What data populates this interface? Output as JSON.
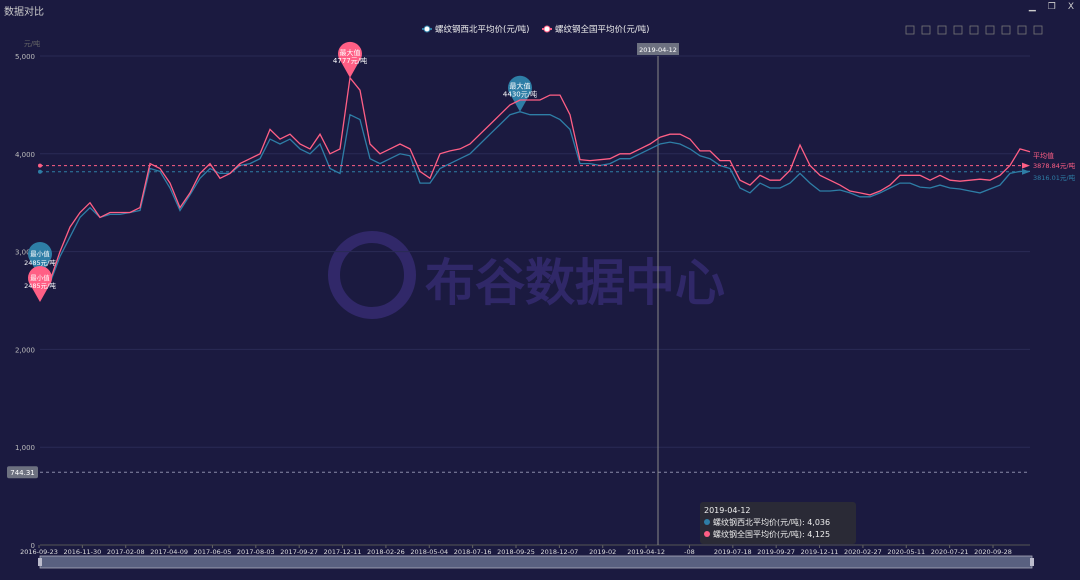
{
  "window": {
    "title": "数据对比",
    "buttons": [
      "minimize",
      "restore",
      "close"
    ],
    "close_label": "X"
  },
  "toolbar_icons": [
    "restore-icon",
    "zoom-select-icon",
    "zoom-reset-icon",
    "bar-chart-icon",
    "stack-icon",
    "scatter-icon",
    "brush-icon",
    "clear-icon",
    "download-icon"
  ],
  "chart_data": {
    "type": "line",
    "legend": {
      "position": "top-center",
      "items": [
        "螺纹钢西北平均价(元/吨)",
        "螺纹钢全国平均价(元/吨)"
      ]
    },
    "ylabel": "元/吨",
    "ylim": [
      0,
      5000
    ],
    "yticks": [
      "0",
      "1,000",
      "2,000",
      "3,000",
      "4,000",
      "5,000"
    ],
    "xticks": [
      "2016-09-23",
      "2016-11-30",
      "2017-02-08",
      "2017-04-09",
      "2017-06-05",
      "2017-08-03",
      "2017-09-27",
      "2017-12-11",
      "2018-02-26",
      "2018-05-04",
      "2018-07-16",
      "2018-09-25",
      "2018-12-07",
      "2019-02",
      "2019-04-12",
      "-08",
      "2019-07-18",
      "2019-09-27",
      "2019-12-11",
      "2020-02-27",
      "2020-05-11",
      "2020-07-21",
      "2020-09-28"
    ],
    "series": [
      {
        "name": "螺纹钢西北平均价(元/吨)",
        "color": "#2e7ea6",
        "values": [
          2560,
          2680,
          2950,
          3150,
          3350,
          3450,
          3350,
          3380,
          3380,
          3400,
          3420,
          3850,
          3820,
          3650,
          3420,
          3580,
          3750,
          3850,
          3800,
          3800,
          3880,
          3900,
          3950,
          4150,
          4100,
          4150,
          4050,
          4000,
          4100,
          3850,
          3800,
          4400,
          4350,
          3950,
          3900,
          3950,
          4000,
          3980,
          3700,
          3700,
          3850,
          3900,
          3950,
          4000,
          4100,
          4200,
          4300,
          4400,
          4430,
          4400,
          4400,
          4400,
          4350,
          4250,
          3900,
          3900,
          3880,
          3900,
          3950,
          3950,
          4000,
          4050,
          4100,
          4120,
          4100,
          4050,
          3980,
          3950,
          3880,
          3850,
          3650,
          3600,
          3700,
          3650,
          3650,
          3700,
          3800,
          3700,
          3620,
          3620,
          3630,
          3600,
          3560,
          3560,
          3600,
          3650,
          3700,
          3700,
          3660,
          3650,
          3680,
          3650,
          3640,
          3620,
          3600,
          3640,
          3680,
          3800,
          3820,
          3820
        ],
        "max": {
          "label": "最大值",
          "value": "4430元/吨"
        },
        "min": {
          "label": "最小值",
          "value": "2485元/吨"
        },
        "average": {
          "value": "3816.01元/吨"
        }
      },
      {
        "name": "螺纹钢全国平均价(元/吨)",
        "color": "#ff5f85",
        "values": [
          2560,
          2700,
          3000,
          3250,
          3400,
          3500,
          3350,
          3400,
          3400,
          3400,
          3450,
          3900,
          3850,
          3700,
          3450,
          3600,
          3800,
          3900,
          3750,
          3800,
          3900,
          3950,
          4000,
          4250,
          4150,
          4200,
          4100,
          4050,
          4200,
          4000,
          4050,
          4777,
          4650,
          4100,
          4000,
          4050,
          4100,
          4050,
          3820,
          3750,
          4000,
          4030,
          4050,
          4100,
          4200,
          4300,
          4400,
          4500,
          4550,
          4550,
          4550,
          4600,
          4600,
          4400,
          3940,
          3930,
          3940,
          3950,
          4000,
          4000,
          4050,
          4100,
          4170,
          4200,
          4200,
          4150,
          4030,
          4030,
          3930,
          3930,
          3730,
          3680,
          3780,
          3730,
          3730,
          3830,
          4090,
          3880,
          3780,
          3730,
          3680,
          3620,
          3600,
          3580,
          3620,
          3680,
          3780,
          3780,
          3780,
          3730,
          3780,
          3730,
          3720,
          3730,
          3740,
          3730,
          3780,
          3880,
          4050,
          4020
        ],
        "max": {
          "label": "最大值",
          "value": "4777元/吨"
        },
        "min": {
          "label": "最小值",
          "value": "2485元/吨"
        },
        "average": {
          "label": "平均值",
          "value": "3878.84元/吨"
        }
      }
    ],
    "markline_value": "744.31",
    "tooltip": {
      "date": "2019-04-12",
      "rows": [
        {
          "name": "螺纹钢西北平均价(元/吨)",
          "value": "4,036"
        },
        {
          "name": "螺纹钢全国平均价(元/吨)",
          "value": "4,125"
        }
      ]
    },
    "watermark": "布谷数据中心"
  }
}
